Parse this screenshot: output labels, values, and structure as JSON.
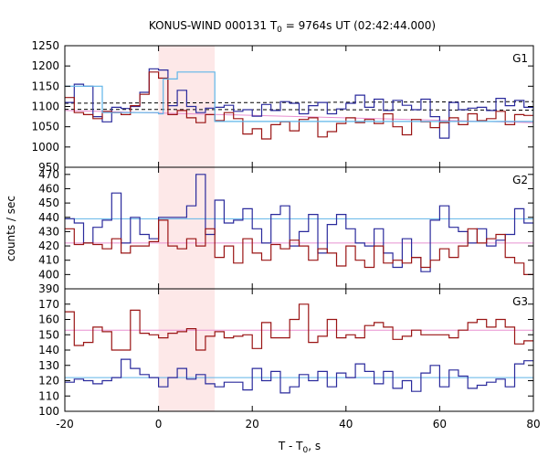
{
  "chart_data": {
    "type": "line",
    "title": "KONUS-WIND 000131 T",
    "title_sub": "0",
    "title_rest": " = 9764s UT (02:42:44.000)",
    "xlabel": "T - T",
    "xlabel_sub": "0",
    "xlabel_rest": ", s",
    "ylabel": "counts / sec",
    "xlim": [
      -20,
      80
    ],
    "x_ticks": [
      -20,
      0,
      20,
      40,
      60,
      80
    ],
    "highlight_region": [
      0,
      12
    ],
    "bin_width": 2,
    "bin_start": -20,
    "colors": {
      "blue_series": "#2a2a9c",
      "red_series": "#9a1414",
      "cyan_series": "#5fb5e8",
      "pink_line": "#e890d0",
      "highlight": "#fde8e8",
      "background_dashed": "#000000"
    },
    "panels": [
      {
        "label": "G1",
        "ylim": [
          950,
          1250
        ],
        "y_ticks": [
          950,
          1000,
          1050,
          1100,
          1150,
          1200,
          1250
        ],
        "series": [
          {
            "color_key": "blue_series",
            "values": [
              1110,
              1155,
              1150,
              1075,
              1062,
              1098,
              1095,
              1100,
              1135,
              1193,
              1190,
              1102,
              1140,
              1100,
              1085,
              1096,
              1098,
              1103,
              1088,
              1092,
              1076,
              1105,
              1090,
              1112,
              1108,
              1082,
              1102,
              1110,
              1082,
              1094,
              1108,
              1128,
              1098,
              1118,
              1090,
              1115,
              1103,
              1092,
              1118,
              1075,
              1022,
              1110,
              1092,
              1096,
              1098,
              1090,
              1120,
              1102,
              1115,
              1098
            ]
          },
          {
            "color_key": "red_series",
            "values": [
              1122,
              1085,
              1080,
              1070,
              1088,
              1085,
              1080,
              1102,
              1130,
              1185,
              1170,
              1080,
              1090,
              1072,
              1060,
              1080,
              1065,
              1085,
              1070,
              1032,
              1045,
              1020,
              1055,
              1062,
              1040,
              1068,
              1072,
              1025,
              1038,
              1058,
              1072,
              1060,
              1068,
              1058,
              1082,
              1050,
              1030,
              1068,
              1062,
              1048,
              1060,
              1072,
              1055,
              1082,
              1065,
              1070,
              1088,
              1055,
              1080,
              1078
            ]
          },
          {
            "color_key": "cyan_series",
            "steps": [
              [
                -20,
                1150
              ],
              [
                -12,
                1085
              ],
              [
                -4,
                1085
              ],
              [
                0,
                1082
              ],
              [
                1,
                1168
              ],
              [
                4,
                1185
              ],
              [
                12,
                1063
              ],
              [
                80,
                1100
              ]
            ]
          }
        ],
        "ref_lines": [
          {
            "color_key": "background_dashed",
            "dash": true,
            "y": [
              1108,
              1112
            ]
          },
          {
            "color_key": "background_dashed",
            "dash": true,
            "y": [
              1093,
              1091
            ]
          },
          {
            "color_key": "pink_line",
            "dash": false,
            "y": [
              1090,
              1060
            ]
          }
        ]
      },
      {
        "label": "G2",
        "ylim": [
          390,
          475
        ],
        "y_ticks": [
          390,
          400,
          410,
          420,
          430,
          440,
          450,
          460,
          470
        ],
        "series": [
          {
            "color_key": "blue_series",
            "values": [
              439,
              436,
              422,
              433,
              438,
              457,
              422,
              440,
              428,
              425,
              440,
              440,
              440,
              448,
              470,
              428,
              452,
              436,
              438,
              446,
              432,
              422,
              442,
              448,
              420,
              430,
              442,
              415,
              435,
              442,
              432,
              422,
              420,
              432,
              415,
              405,
              425,
              412,
              402,
              438,
              448,
              433,
              430,
              422,
              432,
              420,
              424,
              428,
              446,
              436
            ]
          },
          {
            "color_key": "red_series",
            "values": [
              432,
              421,
              422,
              421,
              418,
              425,
              415,
              420,
              420,
              423,
              438,
              420,
              418,
              425,
              420,
              432,
              412,
              420,
              408,
              425,
              415,
              410,
              421,
              418,
              424,
              420,
              410,
              418,
              415,
              406,
              420,
              410,
              405,
              420,
              408,
              410,
              408,
              412,
              405,
              410,
              418,
              412,
              420,
              432,
              422,
              425,
              428,
              412,
              408,
              400
            ]
          }
        ],
        "ref_lines": [
          {
            "color_key": "cyan_series",
            "dash": false,
            "y": [
              439,
              439
            ]
          },
          {
            "color_key": "pink_line",
            "dash": false,
            "y": [
              422,
              422
            ]
          }
        ]
      },
      {
        "label": "G3",
        "ylim": [
          100,
          180
        ],
        "y_ticks": [
          100,
          110,
          120,
          130,
          140,
          150,
          160,
          170
        ],
        "series": [
          {
            "color_key": "blue_series",
            "values": [
              119,
              121,
              120,
              118,
              120,
              122,
              134,
              128,
              124,
              122,
              116,
              122,
              128,
              121,
              124,
              118,
              116,
              119,
              119,
              114,
              128,
              120,
              126,
              112,
              116,
              124,
              120,
              126,
              116,
              125,
              122,
              131,
              126,
              118,
              126,
              115,
              120,
              113,
              125,
              130,
              116,
              127,
              123,
              115,
              117,
              119,
              121,
              116,
              131,
              133
            ]
          },
          {
            "color_key": "red_series",
            "values": [
              165,
              143,
              145,
              155,
              152,
              140,
              140,
              166,
              151,
              150,
              148,
              151,
              152,
              154,
              140,
              149,
              152,
              148,
              149,
              150,
              141,
              158,
              148,
              148,
              160,
              170,
              145,
              149,
              160,
              148,
              150,
              148,
              156,
              158,
              155,
              147,
              149,
              153,
              150,
              150,
              150,
              148,
              153,
              158,
              160,
              155,
              160,
              155,
              144,
              146
            ]
          }
        ],
        "ref_lines": [
          {
            "color_key": "cyan_series",
            "dash": false,
            "y": [
              122,
              122
            ]
          },
          {
            "color_key": "pink_line",
            "dash": false,
            "y": [
              153,
              153
            ]
          }
        ]
      }
    ]
  }
}
